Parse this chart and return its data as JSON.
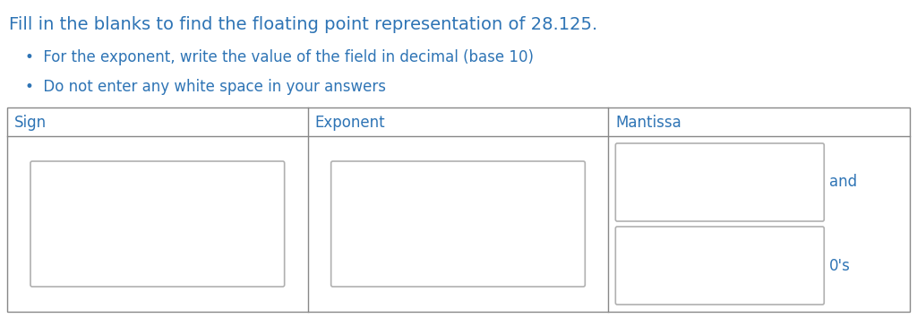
{
  "title": "Fill in the blanks to find the floating point representation of 28.125.",
  "bullet1": "For the exponent, write the value of the field in decimal (base 10)",
  "bullet2": "Do not enter any white space in your answers",
  "col_headers": [
    "Sign",
    "Exponent",
    "Mantissa"
  ],
  "text_color": "#2e74b5",
  "box_border_color": "#b0b0b0",
  "table_border_color": "#888888",
  "bg_color": "#ffffff",
  "label_and": "and",
  "label_0s": "0's",
  "font_size_title": 14,
  "font_size_bullet": 12,
  "font_size_header": 12,
  "font_size_label": 12,
  "fig_width": 10.24,
  "fig_height": 3.55,
  "dpi": 100
}
